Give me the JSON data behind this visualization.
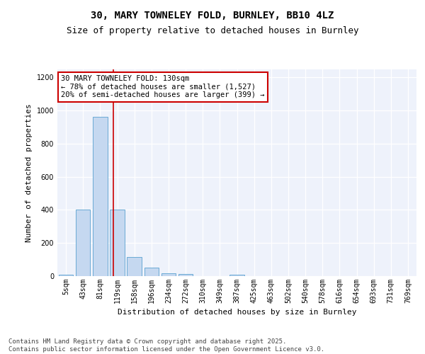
{
  "title_line1": "30, MARY TOWNELEY FOLD, BURNLEY, BB10 4LZ",
  "title_line2": "Size of property relative to detached houses in Burnley",
  "xlabel": "Distribution of detached houses by size in Burnley",
  "ylabel": "Number of detached properties",
  "categories": [
    "5sqm",
    "43sqm",
    "81sqm",
    "119sqm",
    "158sqm",
    "196sqm",
    "234sqm",
    "272sqm",
    "310sqm",
    "349sqm",
    "387sqm",
    "425sqm",
    "463sqm",
    "502sqm",
    "540sqm",
    "578sqm",
    "616sqm",
    "654sqm",
    "693sqm",
    "731sqm",
    "769sqm"
  ],
  "values": [
    10,
    400,
    960,
    400,
    115,
    52,
    18,
    12,
    0,
    0,
    8,
    0,
    0,
    0,
    0,
    0,
    0,
    0,
    0,
    0,
    0
  ],
  "bar_color": "#c5d8f0",
  "bar_edge_color": "#6aaad4",
  "vline_color": "#cc0000",
  "annotation_text": "30 MARY TOWNELEY FOLD: 130sqm\n← 78% of detached houses are smaller (1,527)\n20% of semi-detached houses are larger (399) →",
  "annotation_box_facecolor": "#ffffff",
  "annotation_box_edgecolor": "#cc0000",
  "ylim": [
    0,
    1250
  ],
  "yticks": [
    0,
    200,
    400,
    600,
    800,
    1000,
    1200
  ],
  "footer_text": "Contains HM Land Registry data © Crown copyright and database right 2025.\nContains public sector information licensed under the Open Government Licence v3.0.",
  "bg_color": "#eef2fb",
  "grid_color": "#ffffff",
  "title_fontsize": 10,
  "subtitle_fontsize": 9,
  "axis_label_fontsize": 8,
  "tick_fontsize": 7,
  "annotation_fontsize": 7.5,
  "footer_fontsize": 6.5,
  "ylabel_fontsize": 8
}
